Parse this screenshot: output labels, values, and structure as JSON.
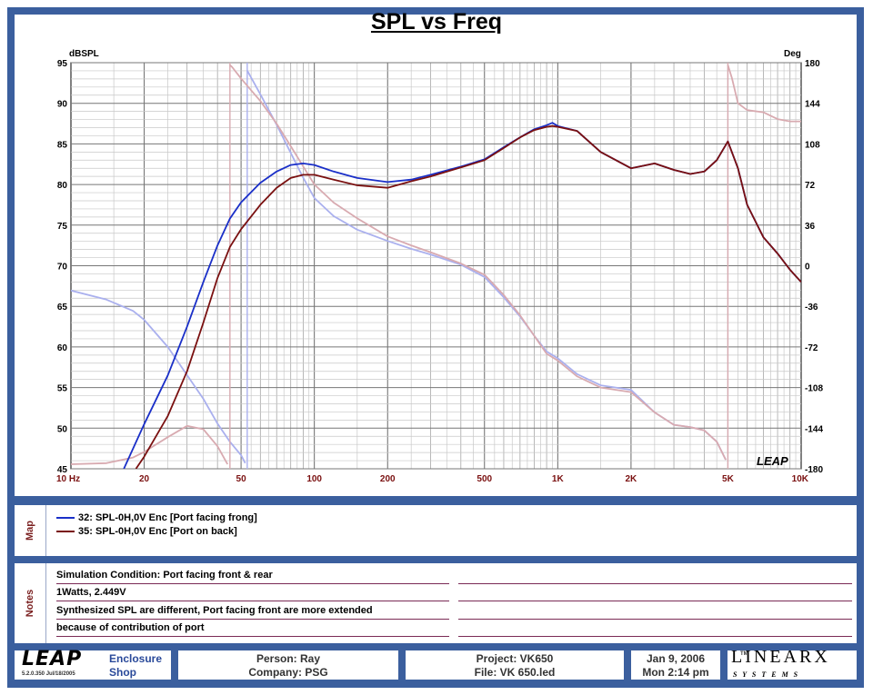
{
  "chart": {
    "title": "SPL vs Freq",
    "left_axis_label": "dBSPL",
    "right_axis_label": "Deg",
    "watermark": "LEAP"
  },
  "chart_data": {
    "type": "line",
    "title": "SPL vs Freq",
    "xlabel": "",
    "ylabel": "dBSPL",
    "y2label": "Deg",
    "x_scale": "log",
    "xlim": [
      10,
      10000
    ],
    "ylim": [
      45,
      95
    ],
    "y2lim": [
      -180,
      180
    ],
    "grid": true,
    "x_ticks": [
      10,
      20,
      50,
      100,
      200,
      500,
      1000,
      2000,
      5000,
      10000
    ],
    "x_tick_labels": [
      "10  Hz",
      "20",
      "50",
      "100",
      "200",
      "500",
      "1K",
      "2K",
      "5K",
      "10K"
    ],
    "y_ticks": [
      45,
      50,
      55,
      60,
      65,
      70,
      75,
      80,
      85,
      90,
      95
    ],
    "y2_ticks": [
      -180,
      -144,
      -108,
      -72,
      -36,
      0,
      36,
      72,
      108,
      144,
      180
    ],
    "series": [
      {
        "name": "32: SPL-0H,0V Enc [Port facing frong]",
        "kind": "spl",
        "color": "#1a2fc8",
        "x": [
          16.5,
          20,
          25,
          30,
          35,
          40,
          45,
          50,
          60,
          70,
          80,
          90,
          100,
          120,
          150,
          200,
          250,
          300,
          400,
          500,
          600,
          700,
          800,
          900,
          950,
          1000,
          1200,
          1500,
          2000,
          2500,
          3000,
          3500,
          4000,
          4500,
          5000,
          5500,
          6000,
          7000,
          8000,
          9000,
          10000
        ],
        "y": [
          45,
          50.5,
          56.5,
          62.5,
          68,
          72.5,
          75.8,
          77.8,
          80.2,
          81.6,
          82.4,
          82.6,
          82.4,
          81.6,
          80.8,
          80.3,
          80.6,
          81.2,
          82.2,
          83.1,
          84.6,
          85.8,
          86.8,
          87.3,
          87.6,
          87.2,
          86.6,
          84.0,
          82.0,
          82.6,
          81.8,
          81.3,
          81.6,
          83.0,
          85.3,
          82.0,
          77.5,
          73.5,
          71.5,
          69.5,
          68.0
        ]
      },
      {
        "name": "35: SPL-0H,0V Enc [Port on back]",
        "kind": "spl",
        "color": "#7a1010",
        "x": [
          18.5,
          20,
          25,
          30,
          35,
          40,
          45,
          50,
          60,
          70,
          80,
          90,
          100,
          120,
          150,
          200,
          250,
          300,
          400,
          500,
          600,
          700,
          800,
          900,
          950,
          1000,
          1200,
          1500,
          2000,
          2500,
          3000,
          3500,
          4000,
          4500,
          5000,
          5500,
          6000,
          7000,
          8000,
          9000,
          10000
        ],
        "y": [
          45,
          46.5,
          51.5,
          57,
          63,
          68.5,
          72.3,
          74.5,
          77.5,
          79.6,
          80.8,
          81.2,
          81.2,
          80.6,
          79.9,
          79.6,
          80.4,
          81.0,
          82.1,
          83.0,
          84.5,
          85.8,
          86.7,
          87.1,
          87.2,
          87.1,
          86.6,
          84.0,
          82.0,
          82.6,
          81.8,
          81.3,
          81.6,
          83.0,
          85.3,
          82.0,
          77.5,
          73.5,
          71.5,
          69.5,
          68.0
        ]
      },
      {
        "name": "32: Phase",
        "kind": "phase",
        "color": "#aab0ee",
        "x": [
          10,
          14,
          18,
          20,
          25,
          30,
          35,
          40,
          45,
          50,
          52,
          53,
          60,
          70,
          80,
          90,
          100,
          120,
          150,
          200,
          250,
          300,
          400,
          500,
          600,
          700,
          800,
          900,
          1000,
          1200,
          1500,
          2000,
          2500,
          3000,
          3500,
          4000,
          4500,
          4900
        ],
        "y": [
          -22,
          -30,
          -40,
          -48,
          -72,
          -97,
          -118,
          -140,
          -156,
          -168,
          -175,
          173,
          152,
          125,
          100,
          78,
          60,
          44,
          32,
          22,
          15,
          10,
          1,
          -10,
          -28,
          -45,
          -62,
          -76,
          -82,
          -96,
          -106,
          -110,
          -130,
          -141,
          -143,
          -146,
          -156,
          -172
        ]
      },
      {
        "name": "35: Phase",
        "kind": "phase",
        "color": "#d8aab0",
        "x": [
          10,
          14,
          18,
          20,
          25,
          30,
          35,
          40,
          44,
          45,
          46,
          50,
          60,
          70,
          80,
          90,
          100,
          120,
          150,
          200,
          250,
          300,
          400,
          500,
          600,
          700,
          800,
          900,
          1000,
          1200,
          1500,
          2000,
          2500,
          3000,
          3500,
          4000,
          4500,
          4900,
          5000,
          5200,
          5500,
          6000,
          7000,
          8000,
          9000,
          10000
        ],
        "y": [
          -176,
          -175,
          -170,
          -165,
          -152,
          -142,
          -145,
          -160,
          -176,
          178,
          176,
          166,
          146,
          126,
          106,
          88,
          72,
          56,
          42,
          26,
          18,
          12,
          2,
          -8,
          -26,
          -44,
          -62,
          -78,
          -84,
          -98,
          -108,
          -112,
          -130,
          -141,
          -143,
          -146,
          -156,
          -172,
          178,
          166,
          144,
          138,
          136,
          130,
          128,
          128
        ]
      }
    ],
    "legend": [
      "32: SPL-0H,0V Enc [Port facing frong]",
      "35: SPL-0H,0V Enc [Port on back]"
    ]
  },
  "map": {
    "label": "Map",
    "entries": [
      {
        "text": "32: SPL-0H,0V Enc [Port facing frong]",
        "color": "#1a2fc8"
      },
      {
        "text": "35: SPL-0H,0V Enc [Port on back]",
        "color": "#7a1010"
      }
    ]
  },
  "notes": {
    "label": "Notes",
    "lines": [
      "Simulation Condition: Port facing front & rear",
      "1Watts, 2.449V",
      "Synthesized SPL are different, Port facing front are more extended",
      "because of contribution of port"
    ]
  },
  "footer": {
    "logo": "LEAP",
    "version": "5.2.0.350   Jul/18/2005",
    "app_line1": "Enclosure",
    "app_line2": "Shop",
    "person": "Person: Ray",
    "company": "Company: PSG",
    "project": "Project: VK650",
    "file": "File: VK 650.led",
    "date": "Jan  9, 2006",
    "time": "Mon  2:14 pm",
    "brand": "LINEARX",
    "brand_sub": "S Y S T E M S",
    "brand_tm": "TM"
  }
}
